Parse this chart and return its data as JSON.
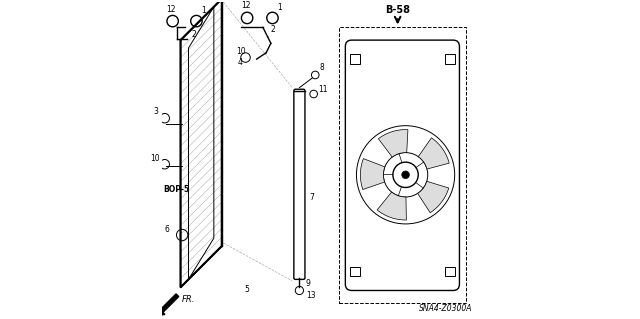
{
  "bg_color": "#ffffff",
  "line_color": "#000000",
  "title": "SNA4-Z0300A",
  "b58_label": "B-58",
  "fr_label": "FR."
}
